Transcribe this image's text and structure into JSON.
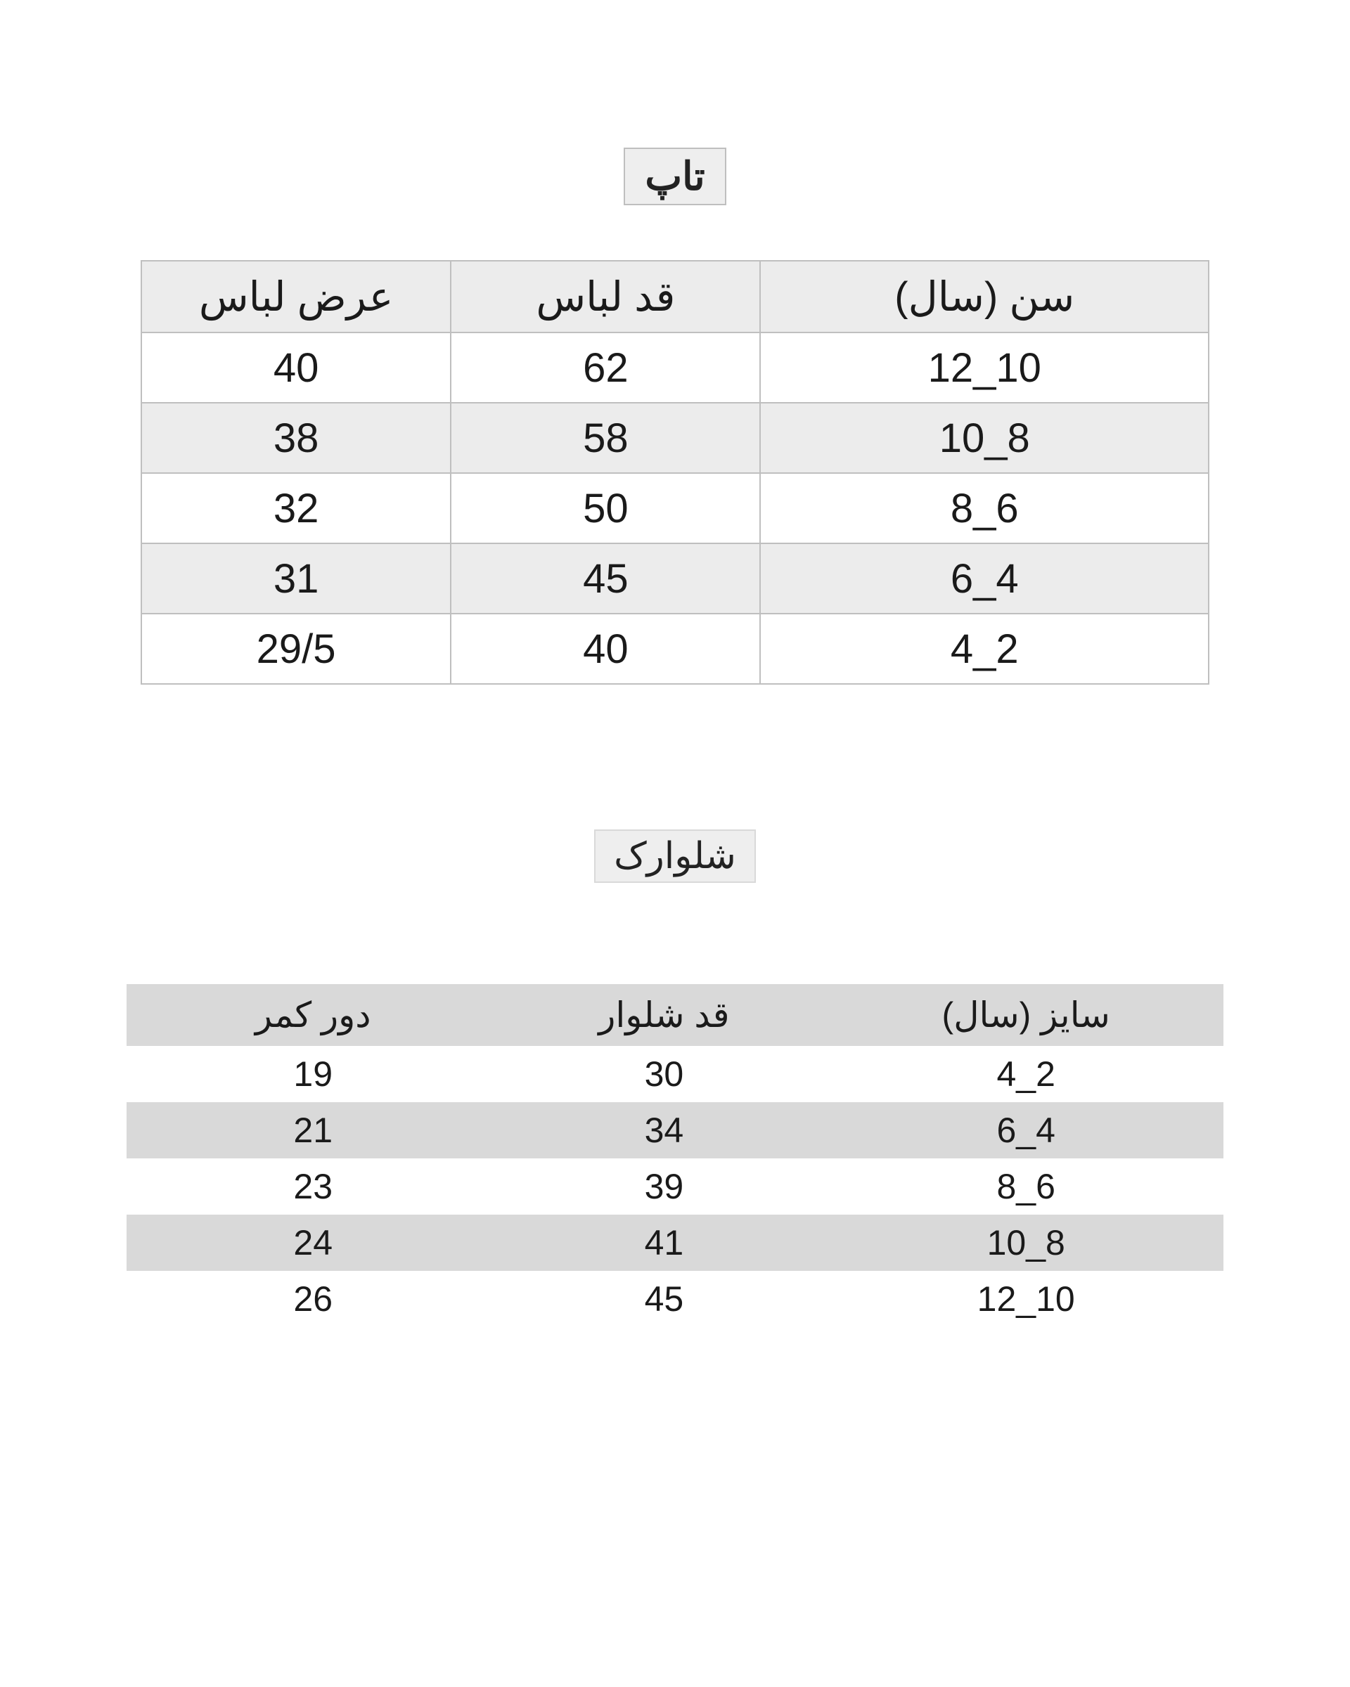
{
  "top_section": {
    "title": "تاپ",
    "type": "table",
    "columns": [
      "سن (سال)",
      "قد لباس",
      "عرض لباس"
    ],
    "column_widths_pct": [
      42,
      29,
      29
    ],
    "header_bg": "#ececec",
    "row_bg": "#ffffff",
    "row_alt_bg": "#ececec",
    "border_color": "#bfbfbf",
    "text_color": "#1a1a1a",
    "header_fontsize": 58,
    "cell_fontsize": 58,
    "rows": [
      {
        "age": "10_12",
        "length": "62",
        "width": "40",
        "alt": false
      },
      {
        "age": "8_10",
        "length": "58",
        "width": "38",
        "alt": true
      },
      {
        "age": "6_8",
        "length": "50",
        "width": "32",
        "alt": false
      },
      {
        "age": "4_6",
        "length": "45",
        "width": "31",
        "alt": true
      },
      {
        "age": "2_4",
        "length": "40",
        "width": "29/5",
        "alt": false
      }
    ]
  },
  "shorts_section": {
    "title": "شلوارک",
    "type": "table",
    "columns": [
      "سایز (سال)",
      "قد شلوار",
      "دور کمر"
    ],
    "column_widths_pct": [
      36,
      30,
      34
    ],
    "header_bg": "#d9d9d9",
    "row_bg": "#ffffff",
    "row_alt_bg": "#d9d9d9",
    "border_color": "none",
    "text_color": "#1a1a1a",
    "header_fontsize": 50,
    "cell_fontsize": 50,
    "rows": [
      {
        "size": "2_4",
        "length": "30",
        "waist": "19",
        "alt": false
      },
      {
        "size": "4_6",
        "length": "34",
        "waist": "21",
        "alt": true
      },
      {
        "size": "6_8",
        "length": "39",
        "waist": "23",
        "alt": false
      },
      {
        "size": "8_10",
        "length": "41",
        "waist": "24",
        "alt": true
      },
      {
        "size": "10_12",
        "length": "45",
        "waist": "26",
        "alt": false
      }
    ]
  }
}
